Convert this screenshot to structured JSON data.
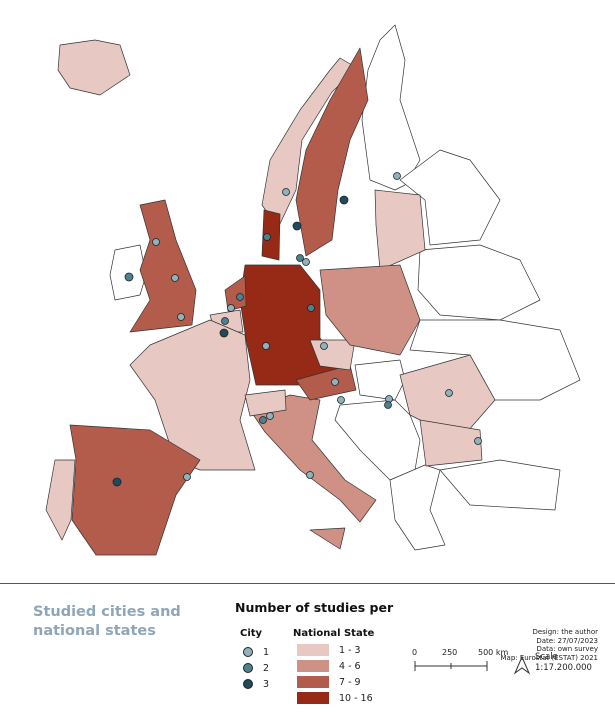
{
  "title": "Studied cities and national states",
  "legend": {
    "title": "Number of studies per",
    "city": {
      "heading": "City",
      "items": [
        "1",
        "2",
        "3"
      ]
    },
    "state": {
      "heading": "National State",
      "items": [
        "1 - 3",
        "4 - 6",
        "7 - 9",
        "10 - 16"
      ]
    }
  },
  "credits": [
    "Design: the author",
    "Date: 27/07/2023",
    "Data: own survey",
    "Map: Eurostat (ESTAT) 2021"
  ],
  "scale": {
    "labels": [
      "0",
      "250",
      "500 km"
    ],
    "word": "Scale",
    "ratio": "1:17.200.000"
  }
}
